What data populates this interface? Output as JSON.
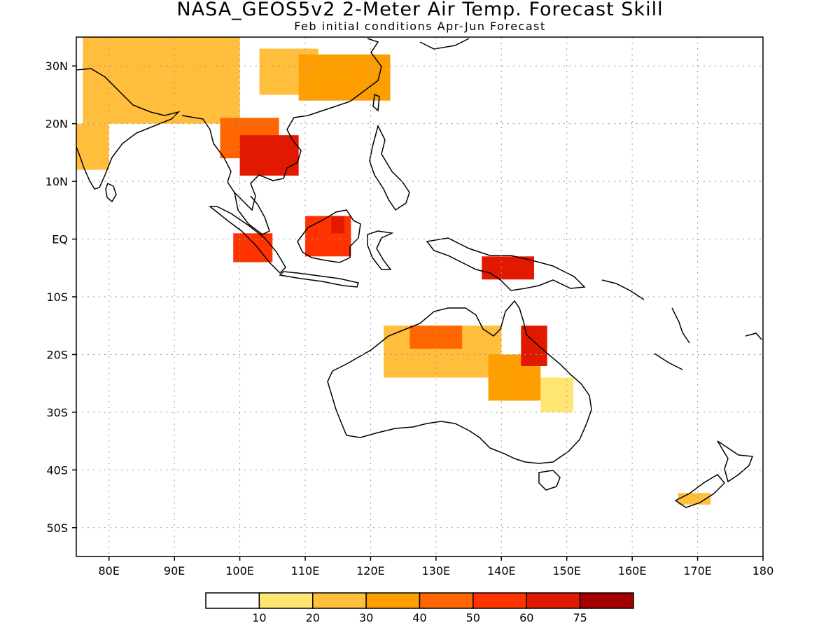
{
  "title": "NASA_GEOS5v2 2-Meter Air Temp. Forecast Skill",
  "subtitle": "Feb initial conditions  Apr-Jun Forecast",
  "map": {
    "lon_range": [
      75,
      180
    ],
    "lat_range": [
      -55,
      35
    ],
    "lon_ticks": [
      {
        "value": 80,
        "label": "80E"
      },
      {
        "value": 90,
        "label": "90E"
      },
      {
        "value": 100,
        "label": "100E"
      },
      {
        "value": 110,
        "label": "110E"
      },
      {
        "value": 120,
        "label": "120E"
      },
      {
        "value": 130,
        "label": "130E"
      },
      {
        "value": 140,
        "label": "140E"
      },
      {
        "value": 150,
        "label": "150E"
      },
      {
        "value": 160,
        "label": "160E"
      },
      {
        "value": 170,
        "label": "170E"
      },
      {
        "value": 180,
        "label": "180"
      }
    ],
    "lat_ticks": [
      {
        "value": 30,
        "label": "30N"
      },
      {
        "value": 20,
        "label": "20N"
      },
      {
        "value": 10,
        "label": "10N"
      },
      {
        "value": 0,
        "label": "EQ"
      },
      {
        "value": -10,
        "label": "10S"
      },
      {
        "value": -20,
        "label": "20S"
      },
      {
        "value": -30,
        "label": "30S"
      },
      {
        "value": -40,
        "label": "40S"
      },
      {
        "value": -50,
        "label": "50S"
      }
    ],
    "grid": "dotted"
  },
  "colorbar": {
    "colors": [
      "#ffffff",
      "#ffe673",
      "#ffbe3c",
      "#ff9e00",
      "#ff6600",
      "#ff3300",
      "#e11900",
      "#a50000"
    ],
    "labels": [
      "10",
      "20",
      "30",
      "40",
      "50",
      "60",
      "75"
    ]
  },
  "skill_regions": [
    {
      "lon": [
        76,
        100
      ],
      "lat": [
        20,
        35
      ],
      "level": 2
    },
    {
      "lon": [
        103,
        112
      ],
      "lat": [
        25,
        33
      ],
      "level": 2
    },
    {
      "lon": [
        109,
        123
      ],
      "lat": [
        24,
        32
      ],
      "level": 3
    },
    {
      "lon": [
        97,
        106
      ],
      "lat": [
        14,
        21
      ],
      "level": 4
    },
    {
      "lon": [
        100,
        109
      ],
      "lat": [
        11,
        18
      ],
      "level": 6
    },
    {
      "lon": [
        75,
        80
      ],
      "lat": [
        12,
        20
      ],
      "level": 2
    },
    {
      "lon": [
        110,
        117
      ],
      "lat": [
        -3,
        4
      ],
      "level": 5
    },
    {
      "lon": [
        114,
        116
      ],
      "lat": [
        1,
        4
      ],
      "level": 6
    },
    {
      "lon": [
        99,
        105
      ],
      "lat": [
        -4,
        1
      ],
      "level": 5
    },
    {
      "lon": [
        137,
        145
      ],
      "lat": [
        -7,
        -3
      ],
      "level": 6
    },
    {
      "lon": [
        122,
        140
      ],
      "lat": [
        -24,
        -15
      ],
      "level": 2
    },
    {
      "lon": [
        126,
        134
      ],
      "lat": [
        -19,
        -15
      ],
      "level": 4
    },
    {
      "lon": [
        138,
        146
      ],
      "lat": [
        -28,
        -20
      ],
      "level": 3
    },
    {
      "lon": [
        143,
        147
      ],
      "lat": [
        -22,
        -15
      ],
      "level": 6
    },
    {
      "lon": [
        146,
        151
      ],
      "lat": [
        -30,
        -24
      ],
      "level": 1
    },
    {
      "lon": [
        167,
        172
      ],
      "lat": [
        -46,
        -44
      ],
      "level": 2
    }
  ]
}
